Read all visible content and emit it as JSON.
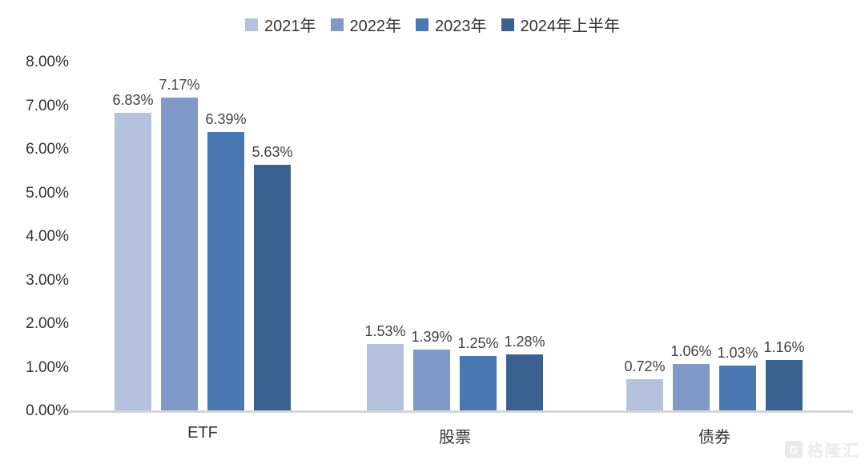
{
  "chart_data": {
    "type": "bar",
    "title": "",
    "xlabel": "",
    "ylabel": "",
    "categories": [
      "ETF",
      "股票",
      "债券"
    ],
    "series": [
      {
        "name": "2021年",
        "color": "#b5c2de",
        "values": [
          6.83,
          1.53,
          0.72
        ]
      },
      {
        "name": "2022年",
        "color": "#8099c7",
        "values": [
          7.17,
          1.39,
          1.06
        ]
      },
      {
        "name": "2023年",
        "color": "#4a78b2",
        "values": [
          6.39,
          1.25,
          1.03
        ]
      },
      {
        "name": "2024年上半年",
        "color": "#3b6191",
        "values": [
          5.63,
          1.28,
          1.16
        ]
      }
    ],
    "data_labels": [
      [
        "6.83%",
        "7.17%",
        "6.39%",
        "5.63%"
      ],
      [
        "1.53%",
        "1.39%",
        "1.25%",
        "1.28%"
      ],
      [
        "0.72%",
        "1.06%",
        "1.03%",
        "1.16%"
      ]
    ],
    "y_ticks": [
      "0.00%",
      "1.00%",
      "2.00%",
      "3.00%",
      "4.00%",
      "5.00%",
      "6.00%",
      "7.00%",
      "8.00%"
    ],
    "ylim": [
      0,
      8
    ],
    "grid": false,
    "legend_position": "top-center",
    "axis_line_color": "#d6d6d6"
  },
  "watermark": {
    "logo_letter": "G",
    "text": "格隆汇"
  }
}
